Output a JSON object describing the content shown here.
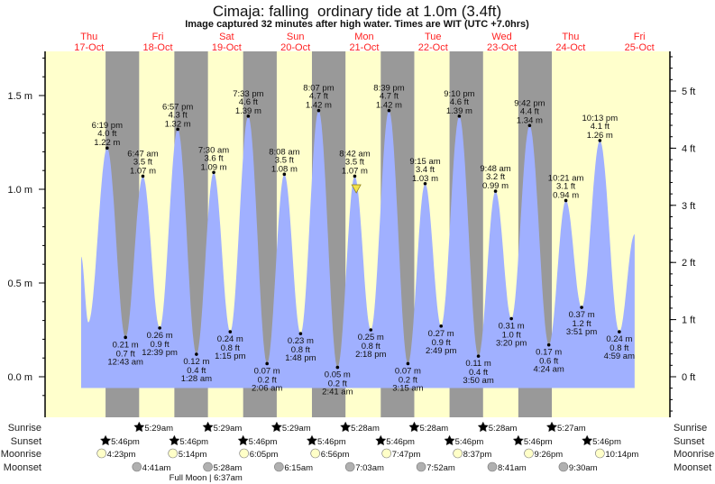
{
  "header": {
    "title": "Cimaja: falling  ordinary tide at 1.0m (3.4ft)",
    "subtitle": "Image captured 32 minutes after high water. Times are WIT (UTC +7.0hrs)"
  },
  "colors": {
    "day": "#ffffcc",
    "night": "#999999",
    "water": "#a0b0ff",
    "day_label": "#ff2222",
    "sunrise": "#b8ad2c",
    "sunset": "#d0462a",
    "moonrise": "#ffffc8",
    "moonset": "#b0b0b0"
  },
  "days": [
    {
      "name": "Thu",
      "date": "17-Oct"
    },
    {
      "name": "Fri",
      "date": "18-Oct"
    },
    {
      "name": "Sat",
      "date": "19-Oct"
    },
    {
      "name": "Sun",
      "date": "20-Oct"
    },
    {
      "name": "Mon",
      "date": "21-Oct"
    },
    {
      "name": "Tue",
      "date": "22-Oct"
    },
    {
      "name": "Wed",
      "date": "23-Oct"
    },
    {
      "name": "Thu",
      "date": "24-Oct"
    },
    {
      "name": "Fri",
      "date": "25-Oct"
    }
  ],
  "chart_data": {
    "type": "area",
    "title": "Cimaja: falling  ordinary tide at 1.0m (3.4ft)",
    "y_left": {
      "unit": "m",
      "ticks": [
        "0.0 m",
        "0.5 m",
        "1.0 m",
        "1.5 m"
      ],
      "tick_values": [
        0,
        0.5,
        1.0,
        1.5
      ],
      "range": [
        -0.11,
        1.73
      ]
    },
    "y_right": {
      "unit": "ft",
      "ticks": [
        "0 ft",
        "1 ft",
        "2 ft",
        "3 ft",
        "4 ft",
        "5 ft"
      ],
      "tick_values": [
        0,
        1,
        2,
        3,
        4,
        5
      ]
    },
    "curve_start": {
      "day": 17,
      "time": "9:14 am",
      "m": 0.64
    },
    "curve_start_low": {
      "day": 17,
      "time": "11:45 am",
      "m": 0.29
    },
    "curve_end": {
      "day": 25,
      "time": "10:20 am",
      "m": 0.76
    },
    "current": {
      "day": 21,
      "time": "9:14 am",
      "m": 1.0
    },
    "extremes": [
      {
        "day": 17,
        "time": "6:19 pm",
        "type": "high",
        "m": "1.22 m",
        "ft": "4.0 ft",
        "v": 1.22
      },
      {
        "day": 18,
        "time": "12:43 am",
        "type": "low",
        "m": "0.21 m",
        "ft": "0.7 ft",
        "v": 0.21
      },
      {
        "day": 18,
        "time": "6:47 am",
        "type": "high",
        "m": "1.07 m",
        "ft": "3.5 ft",
        "v": 1.07
      },
      {
        "day": 18,
        "time": "12:39 pm",
        "type": "low",
        "m": "0.26 m",
        "ft": "0.9 ft",
        "v": 0.26
      },
      {
        "day": 18,
        "time": "6:57 pm",
        "type": "high",
        "m": "1.32 m",
        "ft": "4.3 ft",
        "v": 1.32
      },
      {
        "day": 19,
        "time": "1:28 am",
        "type": "low",
        "m": "0.12 m",
        "ft": "0.4 ft",
        "v": 0.12
      },
      {
        "day": 19,
        "time": "7:30 am",
        "type": "high",
        "m": "1.09 m",
        "ft": "3.6 ft",
        "v": 1.09
      },
      {
        "day": 19,
        "time": "1:15 pm",
        "type": "low",
        "m": "0.24 m",
        "ft": "0.8 ft",
        "v": 0.24
      },
      {
        "day": 19,
        "time": "7:33 pm",
        "type": "high",
        "m": "1.39 m",
        "ft": "4.6 ft",
        "v": 1.39
      },
      {
        "day": 20,
        "time": "2:06 am",
        "type": "low",
        "m": "0.07 m",
        "ft": "0.2 ft",
        "v": 0.07
      },
      {
        "day": 20,
        "time": "8:08 am",
        "type": "high",
        "m": "1.08 m",
        "ft": "3.5 ft",
        "v": 1.08
      },
      {
        "day": 20,
        "time": "1:48 pm",
        "type": "low",
        "m": "0.23 m",
        "ft": "0.8 ft",
        "v": 0.23
      },
      {
        "day": 20,
        "time": "8:07 pm",
        "type": "high",
        "m": "1.42 m",
        "ft": "4.7 ft",
        "v": 1.42
      },
      {
        "day": 21,
        "time": "2:41 am",
        "type": "low",
        "m": "0.05 m",
        "ft": "0.2 ft",
        "v": 0.05
      },
      {
        "day": 21,
        "time": "8:42 am",
        "type": "high",
        "m": "1.07 m",
        "ft": "3.5 ft",
        "v": 1.07
      },
      {
        "day": 21,
        "time": "2:18 pm",
        "type": "low",
        "m": "0.25 m",
        "ft": "0.8 ft",
        "v": 0.25
      },
      {
        "day": 21,
        "time": "8:39 pm",
        "type": "high",
        "m": "1.42 m",
        "ft": "4.7 ft",
        "v": 1.42
      },
      {
        "day": 22,
        "time": "3:15 am",
        "type": "low",
        "m": "0.07 m",
        "ft": "0.2 ft",
        "v": 0.07
      },
      {
        "day": 22,
        "time": "9:15 am",
        "type": "high",
        "m": "1.03 m",
        "ft": "3.4 ft",
        "v": 1.03
      },
      {
        "day": 22,
        "time": "2:49 pm",
        "type": "low",
        "m": "0.27 m",
        "ft": "0.9 ft",
        "v": 0.27
      },
      {
        "day": 22,
        "time": "9:10 pm",
        "type": "high",
        "m": "1.39 m",
        "ft": "4.6 ft",
        "v": 1.39
      },
      {
        "day": 23,
        "time": "3:50 am",
        "type": "low",
        "m": "0.11 m",
        "ft": "0.4 ft",
        "v": 0.11
      },
      {
        "day": 23,
        "time": "9:48 am",
        "type": "high",
        "m": "0.99 m",
        "ft": "3.2 ft",
        "v": 0.99
      },
      {
        "day": 23,
        "time": "3:20 pm",
        "type": "low",
        "m": "0.31 m",
        "ft": "1.0 ft",
        "v": 0.31
      },
      {
        "day": 23,
        "time": "9:42 pm",
        "type": "high",
        "m": "1.34 m",
        "ft": "4.4 ft",
        "v": 1.34
      },
      {
        "day": 24,
        "time": "4:24 am",
        "type": "low",
        "m": "0.17 m",
        "ft": "0.6 ft",
        "v": 0.17
      },
      {
        "day": 24,
        "time": "10:21 am",
        "type": "high",
        "m": "0.94 m",
        "ft": "3.1 ft",
        "v": 0.94
      },
      {
        "day": 24,
        "time": "3:51 pm",
        "type": "low",
        "m": "0.37 m",
        "ft": "1.2 ft",
        "v": 0.37
      },
      {
        "day": 24,
        "time": "10:13 pm",
        "type": "high",
        "m": "1.26 m",
        "ft": "4.1 ft",
        "v": 1.26
      },
      {
        "day": 25,
        "time": "4:59 am",
        "type": "low",
        "m": "0.24 m",
        "ft": "0.8 ft",
        "v": 0.24
      }
    ]
  },
  "rows": {
    "labels": {
      "sunrise": "Sunrise",
      "sunset": "Sunset",
      "moonrise": "Moonrise",
      "moonset": "Moonset"
    },
    "sunrise": [
      {
        "day": 18,
        "time": "5:29am"
      },
      {
        "day": 19,
        "time": "5:29am"
      },
      {
        "day": 20,
        "time": "5:29am"
      },
      {
        "day": 21,
        "time": "5:28am"
      },
      {
        "day": 22,
        "time": "5:28am"
      },
      {
        "day": 23,
        "time": "5:28am"
      },
      {
        "day": 24,
        "time": "5:27am"
      }
    ],
    "sunset": [
      {
        "day": 17,
        "time": "5:46pm"
      },
      {
        "day": 18,
        "time": "5:46pm"
      },
      {
        "day": 19,
        "time": "5:46pm"
      },
      {
        "day": 20,
        "time": "5:46pm"
      },
      {
        "day": 21,
        "time": "5:46pm"
      },
      {
        "day": 22,
        "time": "5:46pm"
      },
      {
        "day": 23,
        "time": "5:46pm"
      },
      {
        "day": 24,
        "time": "5:46pm"
      }
    ],
    "moonrise": [
      {
        "day": 17,
        "time": "4:23pm"
      },
      {
        "day": 18,
        "time": "5:14pm"
      },
      {
        "day": 19,
        "time": "6:05pm"
      },
      {
        "day": 20,
        "time": "6:56pm"
      },
      {
        "day": 21,
        "time": "7:47pm"
      },
      {
        "day": 22,
        "time": "8:37pm"
      },
      {
        "day": 23,
        "time": "9:26pm"
      },
      {
        "day": 24,
        "time": "10:14pm"
      }
    ],
    "moonset": [
      {
        "day": 18,
        "time": "4:41am"
      },
      {
        "day": 19,
        "time": "5:28am"
      },
      {
        "day": 20,
        "time": "6:15am"
      },
      {
        "day": 21,
        "time": "7:03am"
      },
      {
        "day": 22,
        "time": "7:52am"
      },
      {
        "day": 23,
        "time": "8:41am"
      },
      {
        "day": 24,
        "time": "9:30am"
      }
    ],
    "full_moon": {
      "day": 19,
      "time": "6:37am",
      "text": "Full Moon | 6:37am"
    }
  }
}
